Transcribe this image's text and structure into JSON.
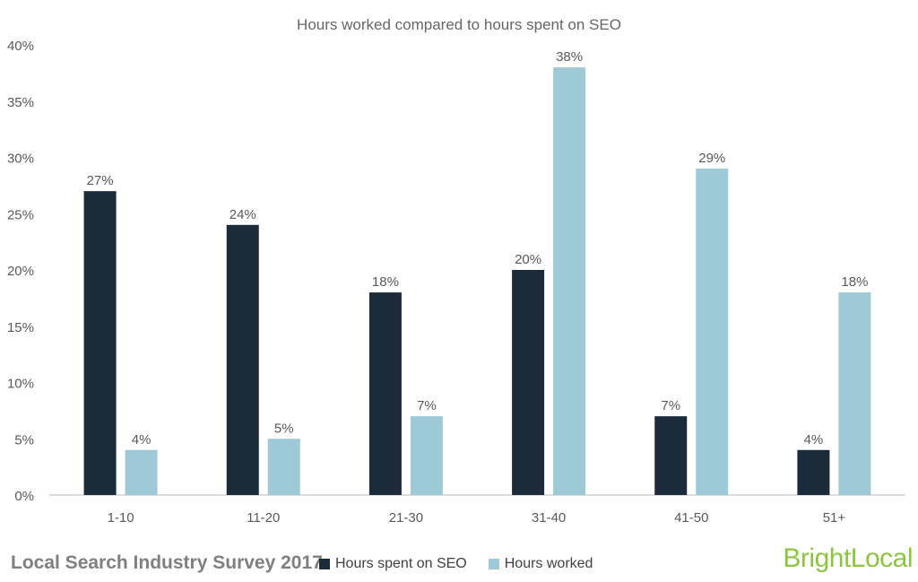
{
  "chart_data": {
    "type": "bar",
    "title": "Hours worked compared to hours spent on SEO",
    "categories": [
      "1-10",
      "11-20",
      "21-30",
      "31-40",
      "41-50",
      "51+"
    ],
    "series": [
      {
        "name": "Hours spent on SEO",
        "values": [
          27,
          24,
          18,
          20,
          7,
          4
        ],
        "color": "#1c2b3a"
      },
      {
        "name": "Hours worked",
        "values": [
          4,
          5,
          7,
          38,
          29,
          18
        ],
        "color": "#9ecad8"
      }
    ],
    "yticks": [
      "0%",
      "5%",
      "10%",
      "15%",
      "20%",
      "25%",
      "30%",
      "35%",
      "40%"
    ],
    "ylim": [
      0,
      40
    ],
    "value_suffix": "%",
    "xlabel": "",
    "ylabel": "",
    "grid": false,
    "legend_position": "bottom"
  },
  "footer": {
    "survey_label": "Local Search Industry Survey 2017",
    "brand_part1": "Bright",
    "brand_part2": "Local"
  },
  "colors": {
    "axis": "#bfbfbf",
    "label": "#595959",
    "brand": "#8cc63f"
  }
}
